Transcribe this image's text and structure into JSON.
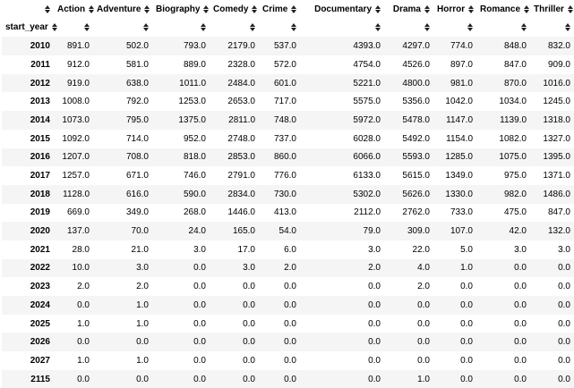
{
  "table": {
    "index_name": "start_year",
    "columns": [
      "Action",
      "Adventure",
      "Biography",
      "Comedy",
      "Crime",
      "Documentary",
      "Drama",
      "Horror",
      "Romance",
      "Thriller"
    ],
    "rows": [
      {
        "year": "2010",
        "values": [
          "891.0",
          "502.0",
          "793.0",
          "2179.0",
          "537.0",
          "4393.0",
          "4297.0",
          "774.0",
          "848.0",
          "832.0"
        ]
      },
      {
        "year": "2011",
        "values": [
          "912.0",
          "581.0",
          "889.0",
          "2328.0",
          "572.0",
          "4754.0",
          "4526.0",
          "897.0",
          "847.0",
          "909.0"
        ]
      },
      {
        "year": "2012",
        "values": [
          "919.0",
          "638.0",
          "1011.0",
          "2484.0",
          "601.0",
          "5221.0",
          "4800.0",
          "981.0",
          "870.0",
          "1016.0"
        ]
      },
      {
        "year": "2013",
        "values": [
          "1008.0",
          "792.0",
          "1253.0",
          "2653.0",
          "717.0",
          "5575.0",
          "5356.0",
          "1042.0",
          "1034.0",
          "1245.0"
        ]
      },
      {
        "year": "2014",
        "values": [
          "1073.0",
          "795.0",
          "1375.0",
          "2811.0",
          "748.0",
          "5972.0",
          "5478.0",
          "1147.0",
          "1139.0",
          "1318.0"
        ]
      },
      {
        "year": "2015",
        "values": [
          "1092.0",
          "714.0",
          "952.0",
          "2748.0",
          "737.0",
          "6028.0",
          "5492.0",
          "1154.0",
          "1082.0",
          "1327.0"
        ]
      },
      {
        "year": "2016",
        "values": [
          "1207.0",
          "708.0",
          "818.0",
          "2853.0",
          "860.0",
          "6066.0",
          "5593.0",
          "1285.0",
          "1075.0",
          "1395.0"
        ]
      },
      {
        "year": "2017",
        "values": [
          "1257.0",
          "671.0",
          "746.0",
          "2791.0",
          "776.0",
          "6133.0",
          "5615.0",
          "1349.0",
          "975.0",
          "1371.0"
        ]
      },
      {
        "year": "2018",
        "values": [
          "1128.0",
          "616.0",
          "590.0",
          "2834.0",
          "730.0",
          "5302.0",
          "5626.0",
          "1330.0",
          "982.0",
          "1486.0"
        ]
      },
      {
        "year": "2019",
        "values": [
          "669.0",
          "349.0",
          "268.0",
          "1446.0",
          "413.0",
          "2112.0",
          "2762.0",
          "733.0",
          "475.0",
          "847.0"
        ]
      },
      {
        "year": "2020",
        "values": [
          "137.0",
          "70.0",
          "24.0",
          "165.0",
          "54.0",
          "79.0",
          "309.0",
          "107.0",
          "42.0",
          "132.0"
        ]
      },
      {
        "year": "2021",
        "values": [
          "28.0",
          "21.0",
          "3.0",
          "17.0",
          "6.0",
          "3.0",
          "22.0",
          "5.0",
          "3.0",
          "3.0"
        ]
      },
      {
        "year": "2022",
        "values": [
          "10.0",
          "3.0",
          "0.0",
          "3.0",
          "2.0",
          "2.0",
          "4.0",
          "1.0",
          "0.0",
          "0.0"
        ]
      },
      {
        "year": "2023",
        "values": [
          "2.0",
          "2.0",
          "0.0",
          "0.0",
          "0.0",
          "0.0",
          "2.0",
          "0.0",
          "0.0",
          "0.0"
        ]
      },
      {
        "year": "2024",
        "values": [
          "0.0",
          "1.0",
          "0.0",
          "0.0",
          "0.0",
          "0.0",
          "0.0",
          "0.0",
          "0.0",
          "0.0"
        ]
      },
      {
        "year": "2025",
        "values": [
          "1.0",
          "1.0",
          "0.0",
          "0.0",
          "0.0",
          "0.0",
          "0.0",
          "0.0",
          "0.0",
          "0.0"
        ]
      },
      {
        "year": "2026",
        "values": [
          "0.0",
          "0.0",
          "0.0",
          "0.0",
          "0.0",
          "0.0",
          "0.0",
          "0.0",
          "0.0",
          "0.0"
        ]
      },
      {
        "year": "2027",
        "values": [
          "1.0",
          "1.0",
          "0.0",
          "0.0",
          "0.0",
          "0.0",
          "0.0",
          "0.0",
          "0.0",
          "0.0"
        ]
      },
      {
        "year": "2115",
        "values": [
          "0.0",
          "0.0",
          "0.0",
          "0.0",
          "0.0",
          "0.0",
          "1.0",
          "0.0",
          "0.0",
          "0.0"
        ]
      }
    ]
  }
}
